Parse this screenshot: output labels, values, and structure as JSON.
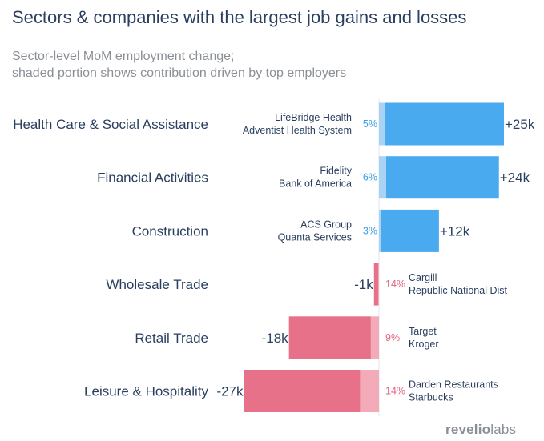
{
  "title": "Sectors & companies with the largest job gains and losses",
  "subtitle": [
    "Sector-level MoM employment change;",
    "shaded portion shows contribution driven by top employers"
  ],
  "logo": {
    "text_revelio": "revelio",
    "text_labs": "labs"
  },
  "colors": {
    "gain": "#4aaaf0",
    "gain_shade": "#a9d3f5",
    "loss": "#e8718a",
    "loss_shade": "#f3aab9",
    "gain_pct_text": "#3a9ee0",
    "loss_pct_text": "#e06483"
  },
  "chart_data": {
    "type": "bar",
    "orientation": "horizontal",
    "title": "Sectors & companies with the largest job gains and losses",
    "units": "thousands of jobs",
    "categories": [
      "Health Care & Social Assistance",
      "Financial Activities",
      "Construction",
      "Wholesale Trade",
      "Retail Trade",
      "Leisure & Hospitality"
    ],
    "values": [
      25,
      24,
      12,
      -1,
      -18,
      -27
    ],
    "value_labels": [
      "+25k",
      "+24k",
      "+12k",
      "-1k",
      "-18k",
      "-27k"
    ],
    "top_employer_share_pct": [
      5,
      6,
      3,
      14,
      9,
      14
    ],
    "share_labels": [
      "5%",
      "6%",
      "3%",
      "14%",
      "9%",
      "14%"
    ],
    "top_employers": [
      [
        "LifeBridge Health",
        "Adventist Health System"
      ],
      [
        "Fidelity",
        "Bank of America"
      ],
      [
        "ACS Group",
        "Quanta Services"
      ],
      [
        "Cargill",
        "Republic National Dist"
      ],
      [
        "Target",
        "Kroger"
      ],
      [
        "Darden Restaurants",
        "Starbucks"
      ]
    ],
    "xlim": [
      -27,
      25
    ]
  }
}
